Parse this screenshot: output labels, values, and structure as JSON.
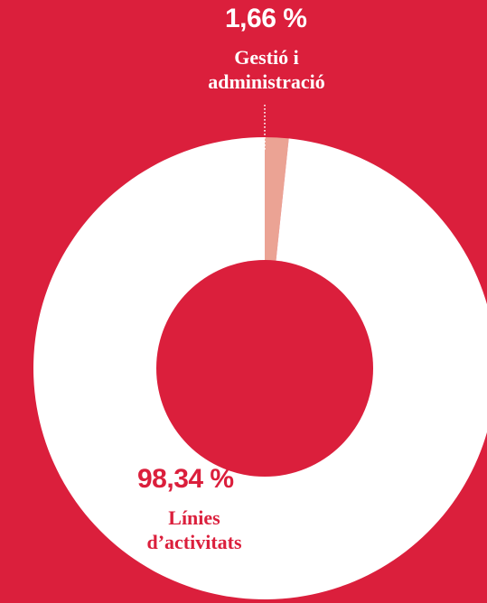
{
  "chart_data": {
    "type": "pie",
    "donut": true,
    "start_angle_deg": 0,
    "direction": "clockwise",
    "slices": [
      {
        "label_lines": [
          "Gestió i",
          "administració"
        ],
        "value": 1.66,
        "value_label": "1,66 %",
        "color": "#EBA394"
      },
      {
        "label_lines": [
          "Línies",
          "d’activitats"
        ],
        "value": 98.34,
        "value_label": "98,34 %",
        "color": "#FFFFFF"
      }
    ],
    "center_color": "#DB1F3C",
    "background_color": "#DB1F3C",
    "leader_line": "dotted"
  }
}
